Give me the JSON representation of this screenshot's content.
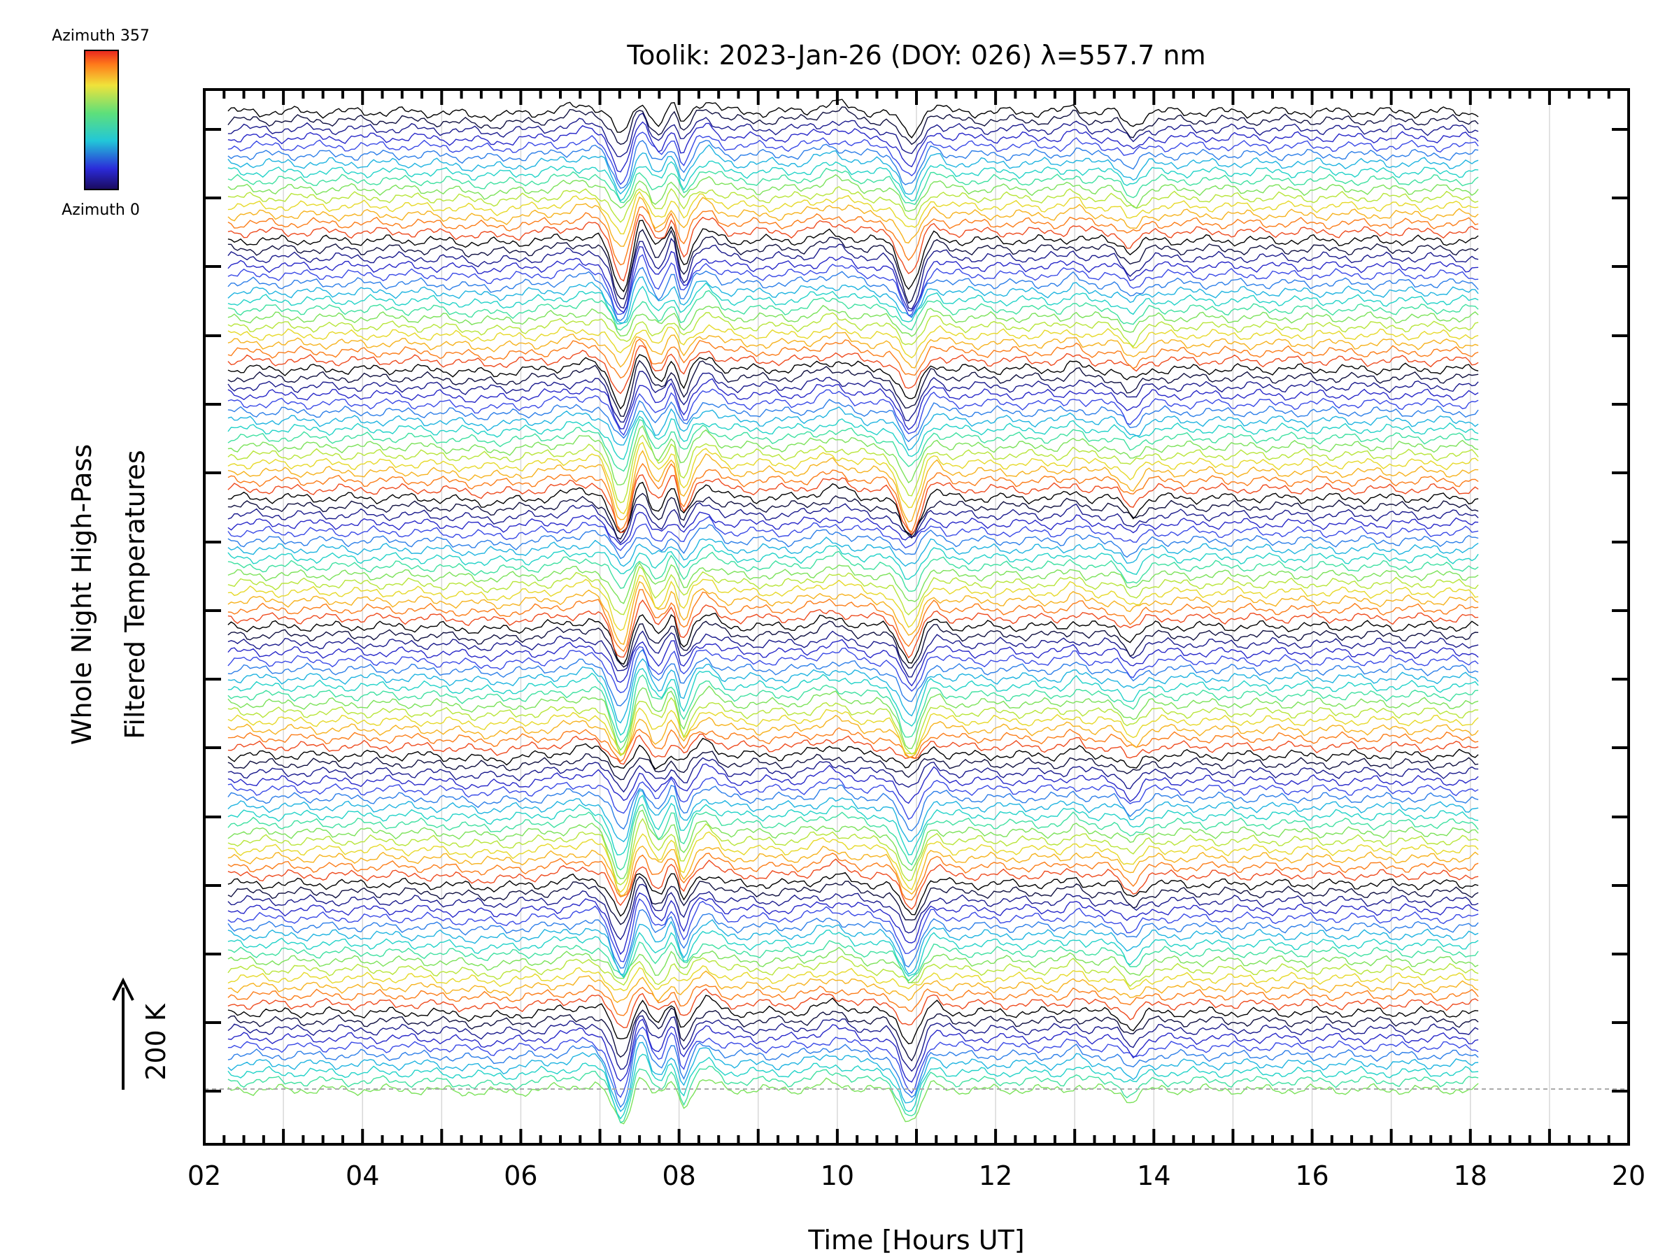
{
  "chart_data": {
    "type": "line",
    "title": "Toolik: 2023-Jan-26 (DOY: 026) λ=557.7 nm",
    "xlabel": "Time [Hours UT]",
    "ylabel_line1": "Whole Night High-Pass",
    "ylabel_line2": "Filtered Temperatures",
    "xlim": [
      2,
      20
    ],
    "x_ticks": [
      "02",
      "04",
      "06",
      "08",
      "10",
      "12",
      "14",
      "16",
      "18",
      "20"
    ],
    "x_data_range": [
      2.3,
      18.1
    ],
    "scale_bar": "200 K",
    "colorbar": {
      "top_label": "Azimuth 357",
      "bottom_label": "Azimuth 0",
      "colormap": "rainbow"
    },
    "series_count": 115,
    "grid": "vertical",
    "stacked": true
  }
}
